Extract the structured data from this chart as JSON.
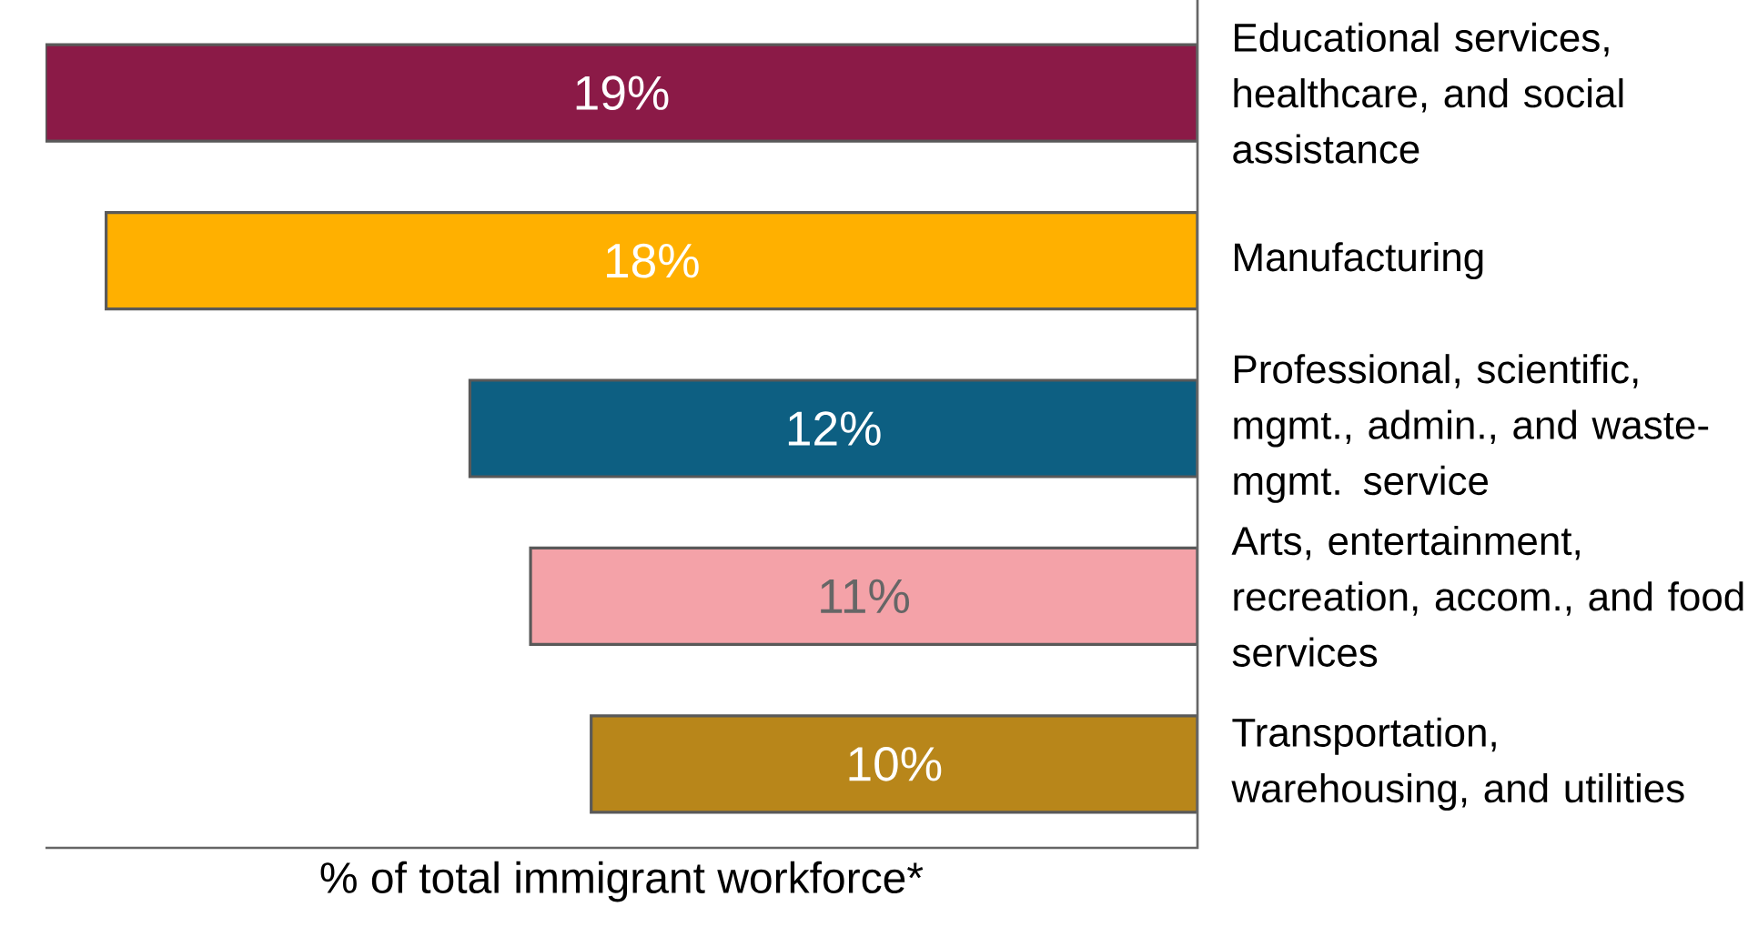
{
  "chart_data": {
    "type": "bar",
    "orientation": "horizontal",
    "xlabel": "% of total immigrant workforce*",
    "categories": [
      "Educational services, healthcare, and social assistance",
      "Manufacturing",
      "Professional, scientific, mgmt., admin., and waste-mgmt. service",
      "Arts, entertainment, recreation, accom., and food services",
      "Transportation, warehousing, and utilities"
    ],
    "values": [
      19,
      18,
      12,
      11,
      10
    ],
    "value_labels": [
      "19%",
      "18%",
      "12%",
      "11%",
      "10%"
    ],
    "colors": [
      "#8b1a47",
      "#ffb000",
      "#0d5f82",
      "#f4a2a8",
      "#b8861a"
    ],
    "xlim": [
      19,
      0
    ]
  }
}
